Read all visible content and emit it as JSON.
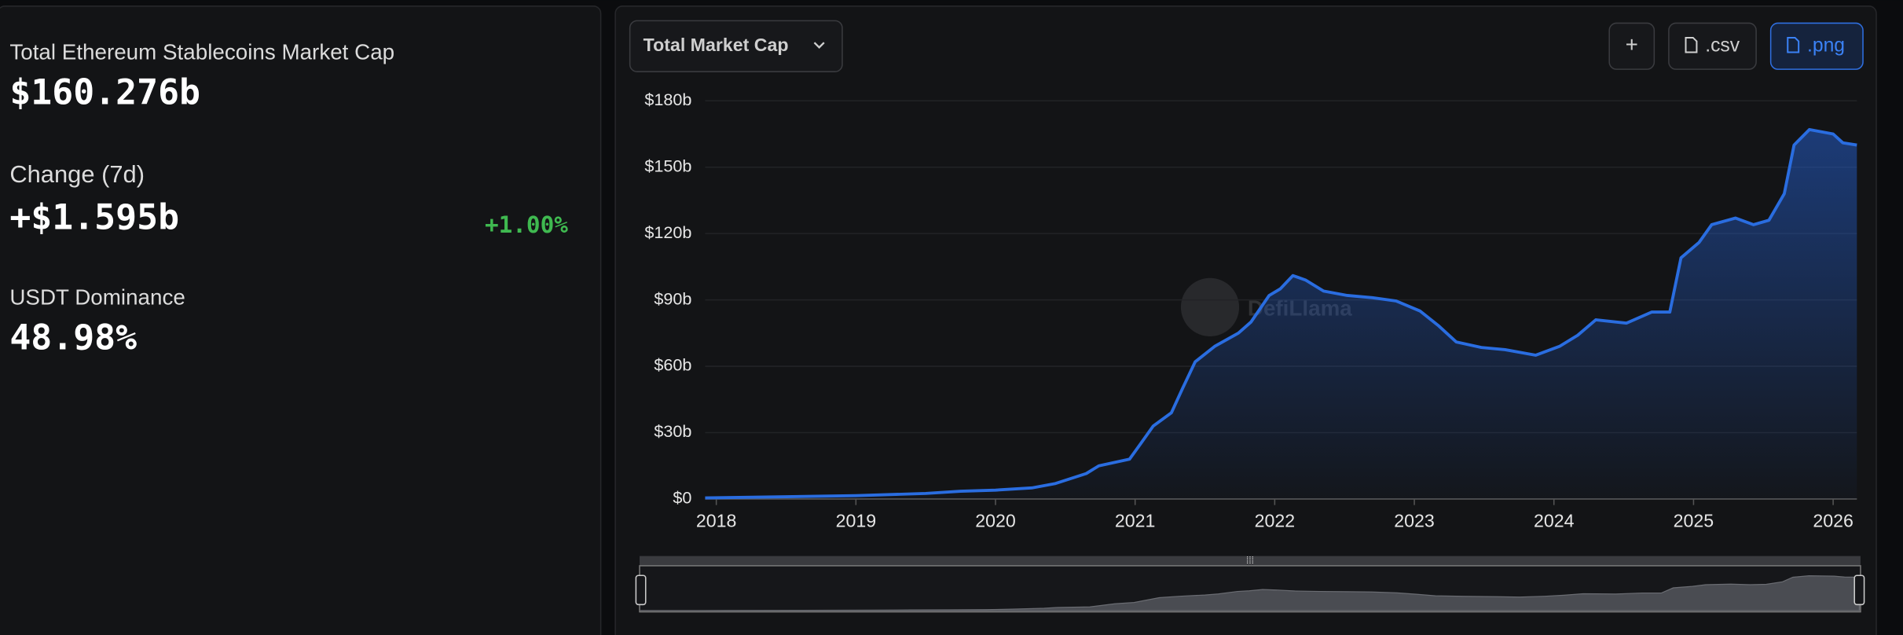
{
  "summary": {
    "market_cap": {
      "label": "Total Ethereum Stablecoins Market Cap",
      "value": "$160.276b"
    },
    "change": {
      "label": "Change (7d)",
      "value": "+$1.595b",
      "percent": "+1.00%"
    },
    "dominance": {
      "label": "USDT Dominance",
      "value": "48.98%"
    }
  },
  "toolbar": {
    "dropdown": "Total Market Cap",
    "buttons": [
      "+",
      ".csv",
      ".png"
    ]
  },
  "watermark": "DefiLlama",
  "chart_data": {
    "type": "area",
    "color": "#2a6de0",
    "x": [
      2017.92,
      2018.5,
      2019.0,
      2019.5,
      2019.75,
      2020.0,
      2020.26,
      2020.43,
      2020.65,
      2020.74,
      2020.96,
      2021.04,
      2021.13,
      2021.26,
      2021.34,
      2021.43,
      2021.57,
      2021.74,
      2021.83,
      2021.96,
      2022.04,
      2022.13,
      2022.22,
      2022.35,
      2022.52,
      2022.7,
      2022.87,
      2023.04,
      2023.17,
      2023.3,
      2023.48,
      2023.65,
      2023.87,
      2024.04,
      2024.17,
      2024.3,
      2024.52,
      2024.7,
      2024.83,
      2024.91,
      2025.04,
      2025.13,
      2025.3,
      2025.43,
      2025.54,
      2025.65,
      2025.72,
      2025.83,
      2026.0,
      2026.07,
      2026.17
    ],
    "values": [
      0.5,
      1,
      1.5,
      2.5,
      3.5,
      4,
      5,
      7,
      11.5,
      15,
      18,
      25,
      33,
      39,
      50,
      62,
      69,
      75,
      80,
      92,
      95,
      101,
      99,
      94,
      92,
      91,
      89.5,
      85,
      78.5,
      71,
      68.5,
      67.5,
      65,
      69,
      74,
      81,
      79.5,
      84.5,
      84.5,
      109,
      116,
      124,
      127,
      124,
      126,
      138,
      160,
      167,
      165,
      161,
      160
    ],
    "xlim": [
      2017.92,
      2026.17
    ],
    "xticks": [
      2018,
      2019,
      2020,
      2021,
      2022,
      2023,
      2024,
      2025,
      2026
    ],
    "ylim": [
      0,
      180
    ],
    "yticks": [
      {
        "value": 0,
        "label": "$0"
      },
      {
        "value": 30,
        "label": "$30b"
      },
      {
        "value": 60,
        "label": "$60b"
      },
      {
        "value": 90,
        "label": "$90b"
      },
      {
        "value": 120,
        "label": "$120b"
      },
      {
        "value": 150,
        "label": "$150b"
      },
      {
        "value": 180,
        "label": "$180b"
      }
    ],
    "grid": true
  }
}
